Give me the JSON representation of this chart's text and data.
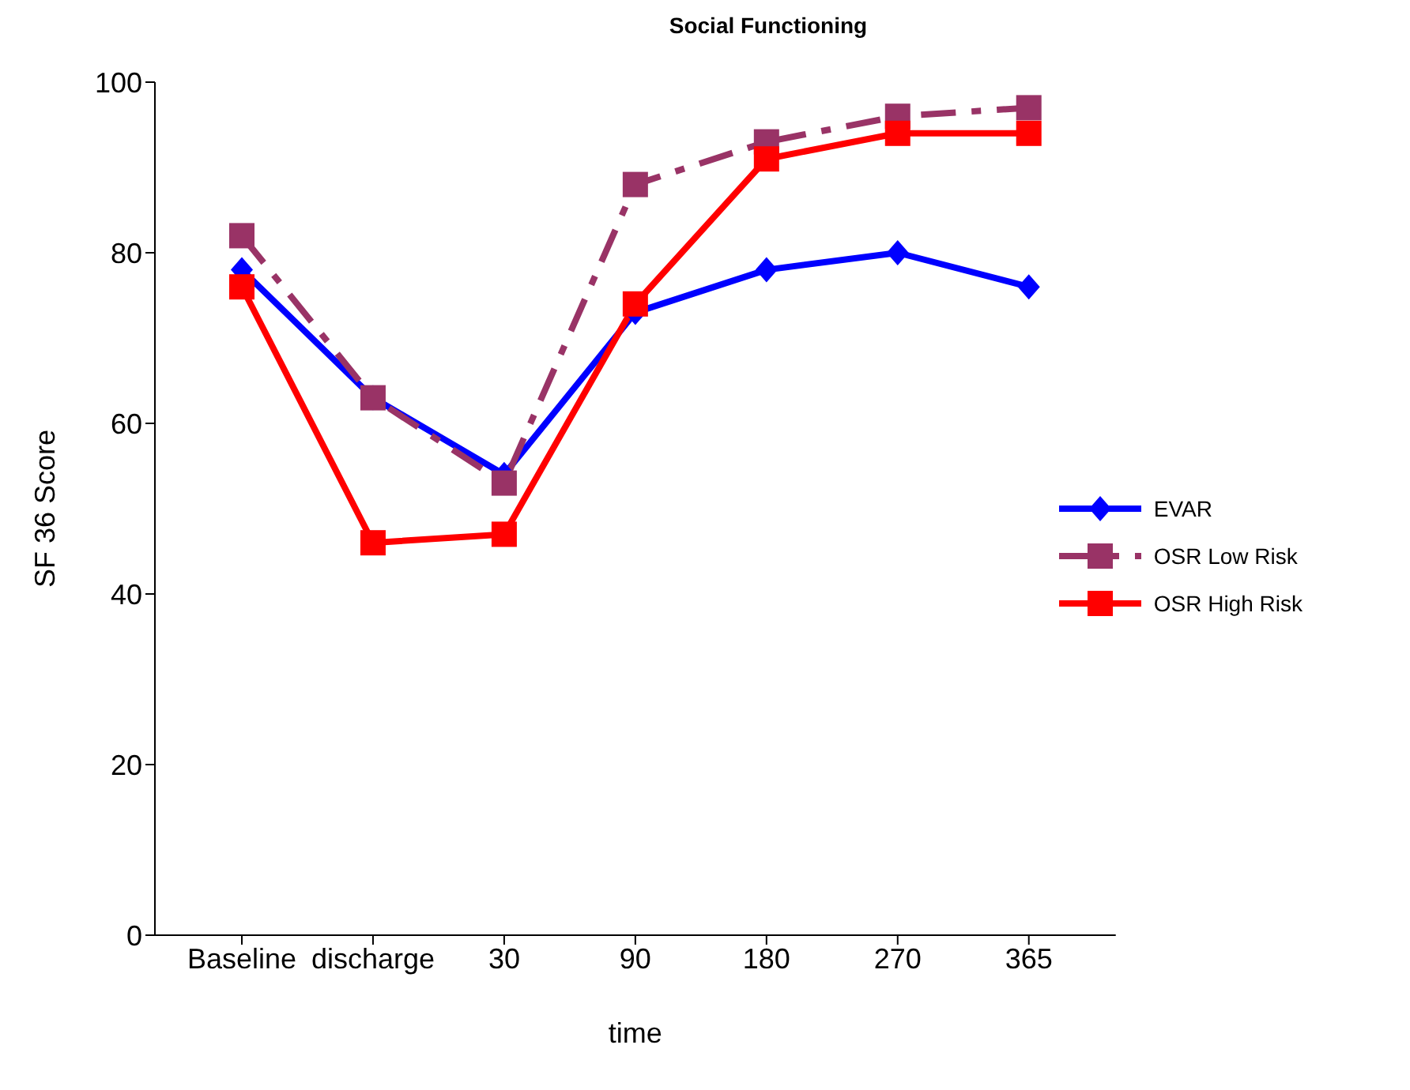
{
  "chart_data": {
    "type": "line",
    "title": "Social Functioning",
    "xlabel": "time",
    "ylabel": "SF 36 Score",
    "categories": [
      "Baseline",
      "discharge",
      "30",
      "90",
      "180",
      "270",
      "365"
    ],
    "series": [
      {
        "name": "EVAR",
        "color": "#0000ff",
        "marker": "diamond",
        "line_style": "solid",
        "values": [
          78,
          63,
          54,
          73,
          78,
          80,
          76
        ]
      },
      {
        "name": "OSR Low Risk",
        "color": "#993366",
        "marker": "square",
        "line_style": "dashed",
        "values": [
          82,
          63,
          53,
          88,
          93,
          96,
          97
        ]
      },
      {
        "name": "OSR High Risk",
        "color": "#ff0000",
        "marker": "square",
        "line_style": "solid",
        "values": [
          76,
          46,
          47,
          74,
          91,
          94,
          94
        ]
      }
    ],
    "ylim": [
      0,
      100
    ],
    "yticks": [
      0,
      20,
      40,
      60,
      80,
      100
    ],
    "grid": false,
    "legend": "right"
  }
}
